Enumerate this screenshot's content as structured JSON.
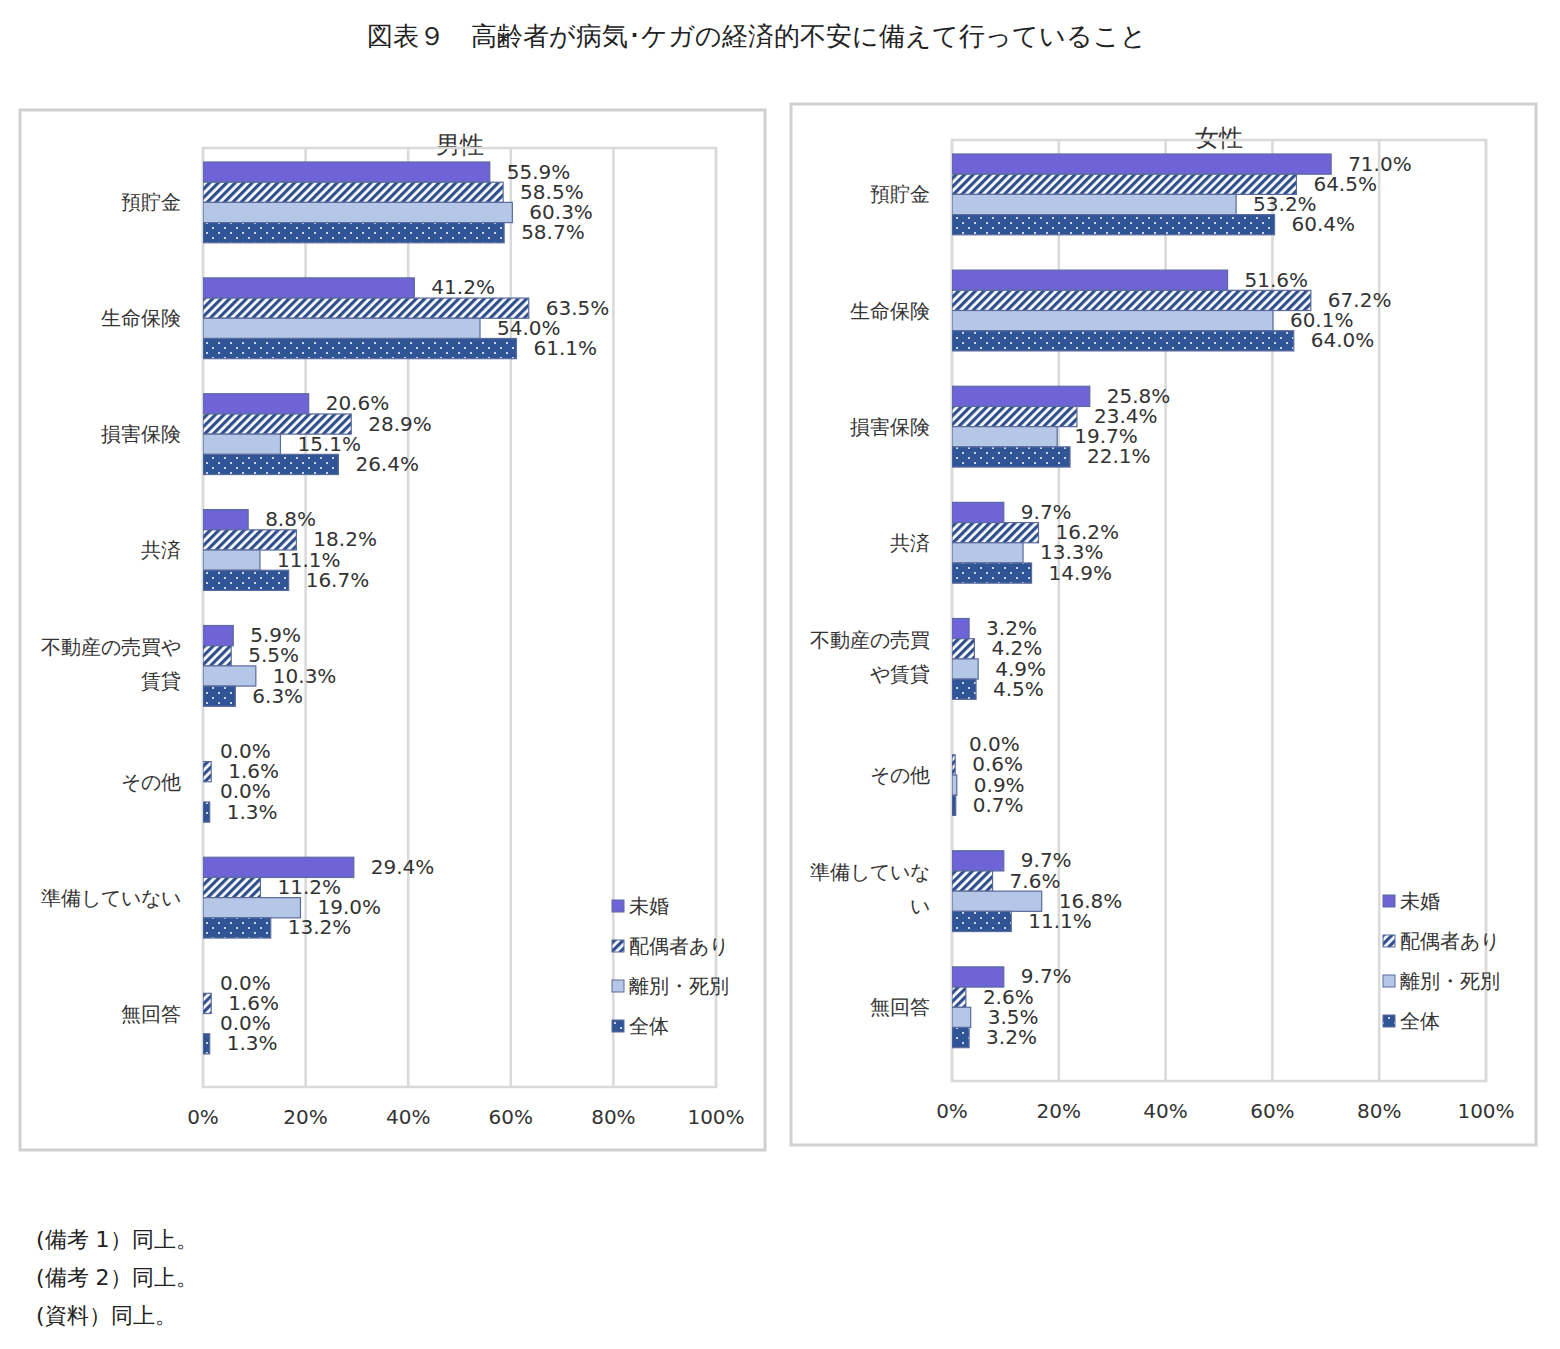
{
  "title": "図表９　高齢者が病気･ケガの経済的不安に備えて行っていること",
  "notes": [
    "(備考 1）同上。",
    "(備考 2）同上。",
    "(資料）同上。"
  ],
  "chart_data": [
    {
      "type": "bar",
      "title": "男性",
      "orientation": "horizontal",
      "data_labels": true,
      "grid": true,
      "legend": "lower right",
      "categories": [
        "預貯金",
        "生命保険",
        "損害保険",
        "共済",
        "不動産の売買や賃貸",
        "その他",
        "準備していない",
        "無回答"
      ],
      "xlim": [
        0,
        100
      ],
      "xticks": [
        {
          "value": 0,
          "label": "0%"
        },
        {
          "value": 20,
          "label": "20%"
        },
        {
          "value": 40,
          "label": "40%"
        },
        {
          "value": 60,
          "label": "60%"
        },
        {
          "value": 80,
          "label": "80%"
        },
        {
          "value": 100,
          "label": "100%"
        }
      ],
      "series": [
        {
          "name": "未婚",
          "color": "#6e64d8",
          "values": [
            55.9,
            41.2,
            20.6,
            8.8,
            5.9,
            0.0,
            29.4,
            0.0
          ],
          "value_labels": [
            "55.9%",
            "41.2%",
            "20.6%",
            "8.8%",
            "5.9%",
            "0.0%",
            "29.4%",
            "0.0%"
          ]
        },
        {
          "name": "配偶者あり",
          "color": "#2f4f8f",
          "values": [
            58.5,
            63.5,
            28.9,
            18.2,
            5.5,
            1.6,
            11.2,
            1.6
          ],
          "value_labels": [
            "58.5%",
            "63.5%",
            "28.9%",
            "18.2%",
            "5.5%",
            "1.6%",
            "11.2%",
            "1.6%"
          ]
        },
        {
          "name": "離別・死別",
          "color": "#b4c7e7",
          "values": [
            60.3,
            54.0,
            15.1,
            11.1,
            10.3,
            0.0,
            19.0,
            0.0
          ],
          "value_labels": [
            "60.3%",
            "54.0%",
            "15.1%",
            "11.1%",
            "10.3%",
            "0.0%",
            "19.0%",
            "0.0%"
          ]
        },
        {
          "name": "全体",
          "color": "#2f5597",
          "values": [
            58.7,
            61.1,
            26.4,
            16.7,
            6.3,
            1.3,
            13.2,
            1.3
          ],
          "value_labels": [
            "58.7%",
            "61.1%",
            "26.4%",
            "16.7%",
            "6.3%",
            "1.3%",
            "13.2%",
            "1.3%"
          ]
        }
      ]
    },
    {
      "type": "bar",
      "title": "女性",
      "orientation": "horizontal",
      "data_labels": true,
      "grid": true,
      "legend": "lower right",
      "categories": [
        "預貯金",
        "生命保険",
        "損害保険",
        "共済",
        "不動産の売買や賃貸",
        "その他",
        "準備していない",
        "無回答"
      ],
      "xlim": [
        0,
        100
      ],
      "xticks": [
        {
          "value": 0,
          "label": "0%"
        },
        {
          "value": 20,
          "label": "20%"
        },
        {
          "value": 40,
          "label": "40%"
        },
        {
          "value": 60,
          "label": "60%"
        },
        {
          "value": 80,
          "label": "80%"
        },
        {
          "value": 100,
          "label": "100%"
        }
      ],
      "series": [
        {
          "name": "未婚",
          "color": "#6e64d8",
          "values": [
            71.0,
            51.6,
            25.8,
            9.7,
            3.2,
            0.0,
            9.7,
            9.7
          ],
          "value_labels": [
            "71.0%",
            "51.6%",
            "25.8%",
            "9.7%",
            "3.2%",
            "0.0%",
            "9.7%",
            "9.7%"
          ]
        },
        {
          "name": "配偶者あり",
          "color": "#2f4f8f",
          "values": [
            64.5,
            67.2,
            23.4,
            16.2,
            4.2,
            0.6,
            7.6,
            2.6
          ],
          "value_labels": [
            "64.5%",
            "67.2%",
            "23.4%",
            "16.2%",
            "4.2%",
            "0.6%",
            "7.6%",
            "2.6%"
          ]
        },
        {
          "name": "離別・死別",
          "color": "#b4c7e7",
          "values": [
            53.2,
            60.1,
            19.7,
            13.3,
            4.9,
            0.9,
            16.8,
            3.5
          ],
          "value_labels": [
            "53.2%",
            "60.1%",
            "19.7%",
            "13.3%",
            "4.9%",
            "0.9%",
            "16.8%",
            "3.5%"
          ]
        },
        {
          "name": "全体",
          "color": "#2f5597",
          "values": [
            60.4,
            64.0,
            22.1,
            14.9,
            4.5,
            0.7,
            11.1,
            3.2
          ],
          "value_labels": [
            "60.4%",
            "64.0%",
            "22.1%",
            "14.9%",
            "4.5%",
            "0.7%",
            "11.1%",
            "3.2%"
          ]
        }
      ]
    }
  ]
}
